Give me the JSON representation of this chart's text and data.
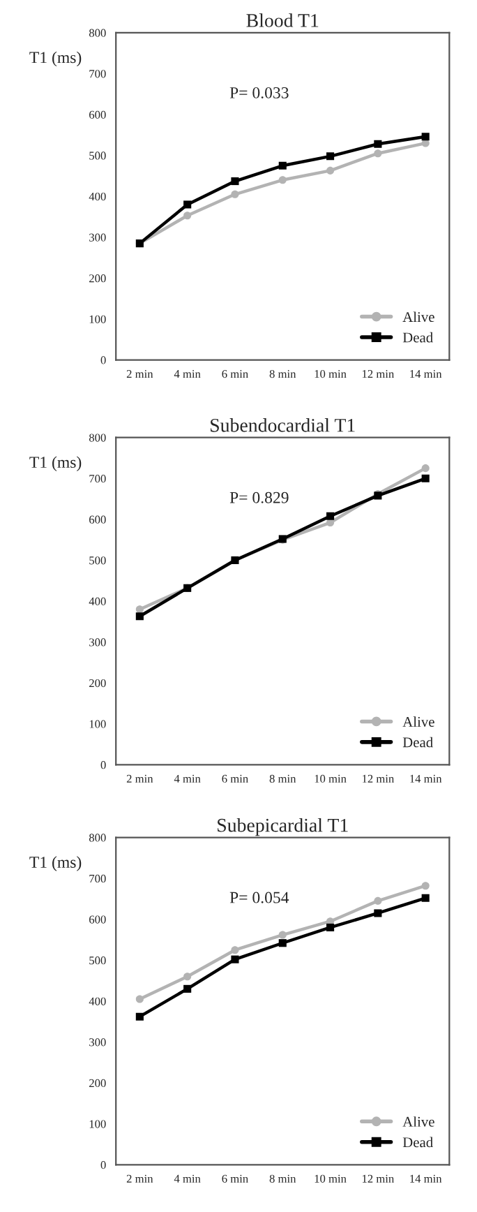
{
  "chart_data": [
    {
      "type": "line",
      "title": "Blood T1",
      "ylabel": "T1 (ms)",
      "categories": [
        "2 min",
        "4 min",
        "6 min",
        "8 min",
        "10 min",
        "12 min",
        "14 min"
      ],
      "ylim": [
        0,
        800
      ],
      "yticks": [
        0,
        100,
        200,
        300,
        400,
        500,
        600,
        700,
        800
      ],
      "grid": false,
      "legend": "bottom right",
      "annotations": [
        "P= 0.033"
      ],
      "series": [
        {
          "name": "Alive",
          "color": "#b3b3b3",
          "marker": "circle",
          "values": [
            285,
            353,
            405,
            440,
            463,
            505,
            530
          ]
        },
        {
          "name": "Dead",
          "color": "#000000",
          "marker": "square",
          "values": [
            285,
            380,
            437,
            475,
            498,
            528,
            546
          ]
        }
      ]
    },
    {
      "type": "line",
      "title": "Subendocardial T1",
      "ylabel": "T1 (ms)",
      "categories": [
        "2 min",
        "4 min",
        "6 min",
        "8 min",
        "10 min",
        "12 min",
        "14 min"
      ],
      "ylim": [
        0,
        800
      ],
      "yticks": [
        0,
        100,
        200,
        300,
        400,
        500,
        600,
        700,
        800
      ],
      "grid": false,
      "legend": "bottom right",
      "annotations": [
        "P= 0.829"
      ],
      "series": [
        {
          "name": "Alive",
          "color": "#b3b3b3",
          "marker": "circle",
          "values": [
            380,
            432,
            500,
            550,
            592,
            662,
            725
          ]
        },
        {
          "name": "Dead",
          "color": "#000000",
          "marker": "square",
          "values": [
            363,
            432,
            500,
            552,
            608,
            658,
            700
          ]
        }
      ]
    },
    {
      "type": "line",
      "title": "Subepicardial T1",
      "ylabel": "T1 (ms)",
      "categories": [
        "2 min",
        "4 min",
        "6 min",
        "8 min",
        "10 min",
        "12 min",
        "14 min"
      ],
      "ylim": [
        0,
        800
      ],
      "yticks": [
        0,
        100,
        200,
        300,
        400,
        500,
        600,
        700,
        800
      ],
      "grid": false,
      "legend": "bottom right",
      "annotations": [
        "P= 0.054"
      ],
      "series": [
        {
          "name": "Alive",
          "color": "#b3b3b3",
          "marker": "circle",
          "values": [
            405,
            460,
            525,
            562,
            595,
            645,
            682
          ]
        },
        {
          "name": "Dead",
          "color": "#000000",
          "marker": "square",
          "values": [
            362,
            430,
            502,
            542,
            580,
            615,
            652
          ]
        }
      ]
    }
  ]
}
